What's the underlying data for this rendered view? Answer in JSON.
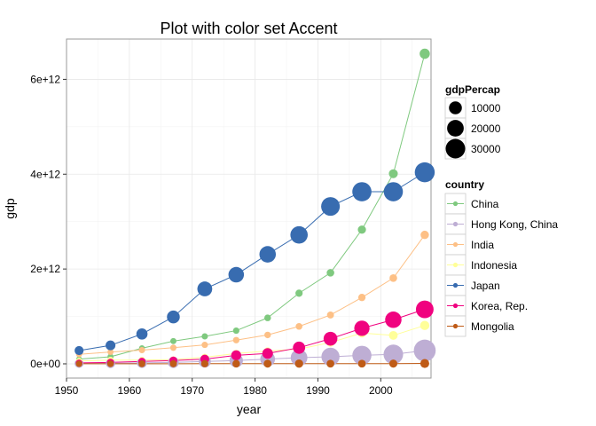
{
  "chart_data": {
    "type": "scatter",
    "title": "Plot with color set Accent",
    "xlabel": "year",
    "ylabel": "gdp",
    "xlim": [
      1950,
      2008
    ],
    "ylim": [
      -300000000000.0,
      6850000000000.0
    ],
    "x_ticks": [
      1950,
      1960,
      1970,
      1980,
      1990,
      2000
    ],
    "x_tick_labels": [
      "1950",
      "1960",
      "1970",
      "1980",
      "1990",
      "2000"
    ],
    "y_ticks": [
      0,
      2000000000000.0,
      4000000000000.0,
      6000000000000.0
    ],
    "y_tick_labels": [
      "0e+00",
      "2e+12",
      "4e+12",
      "6e+12"
    ],
    "grid": true,
    "legend_position": "right",
    "size_legend": {
      "title": "gdpPercap",
      "entries": [
        {
          "label": "10000",
          "value": 10000
        },
        {
          "label": "20000",
          "value": 20000
        },
        {
          "label": "30000",
          "value": 30000
        }
      ]
    },
    "color_legend": {
      "title": "country"
    },
    "x": [
      1952,
      1957,
      1962,
      1967,
      1972,
      1977,
      1982,
      1987,
      1992,
      1997,
      2002,
      2007
    ],
    "series": [
      {
        "name": "China",
        "color": "#7FC97F",
        "values": [
          100000000000.0,
          150000000000.0,
          330000000000.0,
          480000000000.0,
          580000000000.0,
          700000000000.0,
          970000000000.0,
          1490000000000.0,
          1920000000000.0,
          2830000000000.0,
          4010000000000.0,
          6540000000000.0
        ],
        "gdpPercap": [
          400,
          575,
          487,
          613,
          677,
          741,
          962,
          1379,
          1656,
          2289,
          3119,
          4959
        ]
      },
      {
        "name": "Hong Kong, China",
        "color": "#BEAED4",
        "values": [
          10000000000.0,
          10000000000.0,
          20000000000.0,
          30000000000.0,
          50000000000.0,
          70000000000.0,
          100000000000.0,
          130000000000.0,
          150000000000.0,
          180000000000.0,
          200000000000.0,
          280000000000.0
        ],
        "gdpPercap": [
          3054,
          3629,
          4693,
          6198,
          8316,
          11186,
          14561,
          20038,
          24758,
          28378,
          30210,
          39725
        ]
      },
      {
        "name": "India",
        "color": "#FDC086",
        "values": [
          200000000000.0,
          250000000000.0,
          290000000000.0,
          340000000000.0,
          400000000000.0,
          500000000000.0,
          610000000000.0,
          790000000000.0,
          1030000000000.0,
          1400000000000.0,
          1810000000000.0,
          2720000000000.0
        ],
        "gdpPercap": [
          547,
          590,
          658,
          701,
          724,
          813,
          856,
          977,
          1164,
          1459,
          1747,
          2452
        ]
      },
      {
        "name": "Indonesia",
        "color": "#FFFF99",
        "values": [
          60000000000.0,
          80000000000.0,
          80000000000.0,
          90000000000.0,
          140000000000.0,
          220000000000.0,
          270000000000.0,
          310000000000.0,
          450000000000.0,
          650000000000.0,
          600000000000.0,
          810000000000.0
        ],
        "gdpPercap": [
          750,
          859,
          849,
          762,
          1111,
          1383,
          1517,
          1748,
          2383,
          3119,
          2874,
          3541
        ]
      },
      {
        "name": "Japan",
        "color": "#386CB0",
        "values": [
          280000000000.0,
          390000000000.0,
          630000000000.0,
          990000000000.0,
          1580000000000.0,
          1880000000000.0,
          2310000000000.0,
          2720000000000.0,
          3320000000000.0,
          3630000000000.0,
          3630000000000.0,
          4040000000000.0
        ],
        "gdpPercap": [
          3217,
          4318,
          6577,
          9847,
          14779,
          16610,
          19384,
          22376,
          26825,
          28817,
          28605,
          31656
        ]
      },
      {
        "name": "Korea, Rep.",
        "color": "#F0027F",
        "values": [
          20000000000.0,
          30000000000.0,
          50000000000.0,
          70000000000.0,
          100000000000.0,
          180000000000.0,
          220000000000.0,
          340000000000.0,
          530000000000.0,
          750000000000.0,
          930000000000.0,
          1150000000000.0
        ],
        "gdpPercap": [
          1031,
          1488,
          1536,
          2029,
          3031,
          4657,
          5623,
          8533,
          12104,
          15994,
          19234,
          23348
        ]
      },
      {
        "name": "Mongolia",
        "color": "#BF5B17",
        "values": [
          1000000000.0,
          1000000000.0,
          2000000000.0,
          2000000000.0,
          3000000000.0,
          3000000000.0,
          4000000000.0,
          5000000000.0,
          4000000000.0,
          4000000000.0,
          5000000000.0,
          8000000000.0
        ],
        "gdpPercap": [
          787,
          912,
          1056,
          1226,
          1421,
          1648,
          2000,
          2338,
          1785,
          1902,
          2140,
          3096
        ]
      }
    ]
  }
}
